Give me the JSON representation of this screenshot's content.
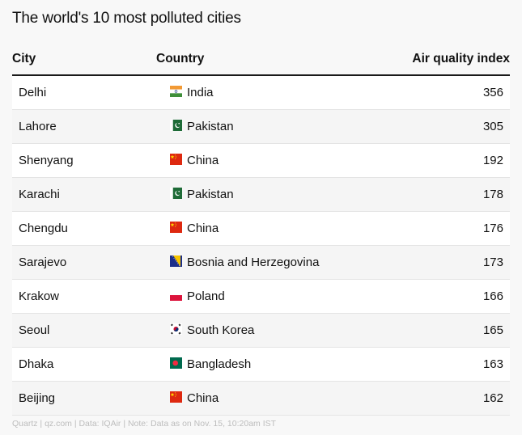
{
  "title": "The world's 10 most polluted cities",
  "footer": "Quartz | qz.com | Data: IQAir | Note: Data as on Nov. 15, 10:20am IST",
  "chart_data": {
    "type": "table",
    "title": "The world's 10 most polluted cities",
    "columns": [
      "City",
      "Country",
      "Air quality index"
    ],
    "rows": [
      {
        "city": "Delhi",
        "country": "India",
        "flag": "india-flag-icon",
        "aqi": 356
      },
      {
        "city": "Lahore",
        "country": "Pakistan",
        "flag": "pakistan-flag-icon",
        "aqi": 305
      },
      {
        "city": "Shenyang",
        "country": "China",
        "flag": "china-flag-icon",
        "aqi": 192
      },
      {
        "city": "Karachi",
        "country": "Pakistan",
        "flag": "pakistan-flag-icon",
        "aqi": 178
      },
      {
        "city": "Chengdu",
        "country": "China",
        "flag": "china-flag-icon",
        "aqi": 176
      },
      {
        "city": "Sarajevo",
        "country": "Bosnia and Herzegovina",
        "flag": "bosnia-flag-icon",
        "aqi": 173
      },
      {
        "city": "Krakow",
        "country": "Poland",
        "flag": "poland-flag-icon",
        "aqi": 166
      },
      {
        "city": "Seoul",
        "country": "South Korea",
        "flag": "south-korea-flag-icon",
        "aqi": 165
      },
      {
        "city": "Dhaka",
        "country": "Bangladesh",
        "flag": "bangladesh-flag-icon",
        "aqi": 163
      },
      {
        "city": "Beijing",
        "country": "China",
        "flag": "china-flag-icon",
        "aqi": 162
      }
    ]
  }
}
